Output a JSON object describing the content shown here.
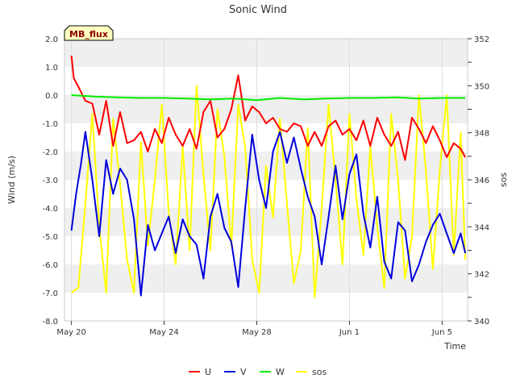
{
  "chart_data": {
    "type": "line",
    "title": "Sonic Wind",
    "badge": "MB_flux",
    "xlabel": "Time",
    "ylabel": "Wind (m/s)",
    "y2label": "sos",
    "ylim": [
      -8.0,
      2.0
    ],
    "y2lim": [
      340,
      352
    ],
    "xlim": [
      -0.3,
      17.1
    ],
    "yticks": [
      "2.0",
      "1.0",
      "0.0",
      "-1.0",
      "-2.0",
      "-3.0",
      "-4.0",
      "-5.0",
      "-6.0",
      "-7.0",
      "-8.0"
    ],
    "y2ticks": [
      "352",
      "350",
      "348",
      "346",
      "344",
      "342",
      "340"
    ],
    "xticks": [
      {
        "day": 0,
        "label": "May 20"
      },
      {
        "day": 4,
        "label": "May 24"
      },
      {
        "day": 8,
        "label": "May 28"
      },
      {
        "day": 12,
        "label": "Jun 1"
      },
      {
        "day": 16,
        "label": "Jun 5"
      }
    ],
    "grid": true,
    "legend_position": "bottom",
    "series": [
      {
        "name": "U",
        "axis": "left",
        "color": "#ff0000",
        "x": [
          0,
          0.1,
          0.3,
          0.6,
          0.9,
          1.2,
          1.5,
          1.8,
          2.1,
          2.4,
          2.7,
          3.0,
          3.3,
          3.6,
          3.9,
          4.2,
          4.5,
          4.8,
          5.1,
          5.4,
          5.7,
          6.0,
          6.3,
          6.6,
          6.9,
          7.2,
          7.5,
          7.8,
          8.1,
          8.4,
          8.7,
          9.0,
          9.3,
          9.6,
          9.9,
          10.2,
          10.5,
          10.8,
          11.1,
          11.4,
          11.7,
          12.0,
          12.3,
          12.6,
          12.9,
          13.2,
          13.5,
          13.8,
          14.1,
          14.4,
          14.7,
          15.0,
          15.3,
          15.6,
          15.9,
          16.2,
          16.5,
          16.8,
          17.0
        ],
        "values": [
          1.4,
          0.6,
          0.3,
          -0.2,
          -0.3,
          -1.4,
          -0.2,
          -1.8,
          -0.6,
          -1.7,
          -1.6,
          -1.3,
          -2.0,
          -1.2,
          -1.7,
          -0.8,
          -1.4,
          -1.8,
          -1.2,
          -1.9,
          -0.6,
          -0.2,
          -1.5,
          -1.2,
          -0.5,
          0.7,
          -0.9,
          -0.4,
          -0.6,
          -1.0,
          -0.8,
          -1.2,
          -1.3,
          -1.0,
          -1.1,
          -1.8,
          -1.3,
          -1.8,
          -1.1,
          -0.9,
          -1.4,
          -1.2,
          -1.6,
          -0.9,
          -1.8,
          -0.8,
          -1.4,
          -1.8,
          -1.3,
          -2.3,
          -0.8,
          -1.2,
          -1.7,
          -1.1,
          -1.6,
          -2.2,
          -1.7,
          -1.9,
          -2.2
        ]
      },
      {
        "name": "V",
        "axis": "left",
        "color": "#0000dd",
        "x": [
          0,
          0.2,
          0.4,
          0.6,
          0.9,
          1.2,
          1.5,
          1.8,
          2.1,
          2.4,
          2.7,
          3.0,
          3.3,
          3.6,
          3.9,
          4.2,
          4.5,
          4.8,
          5.1,
          5.4,
          5.7,
          6.0,
          6.3,
          6.6,
          6.9,
          7.2,
          7.5,
          7.8,
          8.1,
          8.4,
          8.7,
          9.0,
          9.3,
          9.6,
          9.9,
          10.2,
          10.5,
          10.8,
          11.1,
          11.4,
          11.7,
          12.0,
          12.3,
          12.6,
          12.9,
          13.2,
          13.5,
          13.8,
          14.1,
          14.4,
          14.7,
          15.0,
          15.3,
          15.6,
          15.9,
          16.2,
          16.5,
          16.8,
          17.0
        ],
        "values": [
          -4.8,
          -3.5,
          -2.5,
          -1.3,
          -3.0,
          -5.0,
          -2.3,
          -3.5,
          -2.6,
          -3.0,
          -4.4,
          -7.1,
          -4.6,
          -5.5,
          -4.9,
          -4.3,
          -5.6,
          -4.4,
          -5.0,
          -5.3,
          -6.5,
          -4.3,
          -3.5,
          -4.7,
          -5.2,
          -6.8,
          -4.0,
          -1.4,
          -3.0,
          -4.0,
          -2.0,
          -1.3,
          -2.4,
          -1.5,
          -2.6,
          -3.6,
          -4.3,
          -6.0,
          -4.3,
          -2.5,
          -4.4,
          -2.8,
          -2.1,
          -4.2,
          -5.4,
          -3.6,
          -5.9,
          -6.5,
          -4.5,
          -4.8,
          -6.6,
          -6.0,
          -5.2,
          -4.6,
          -4.2,
          -4.9,
          -5.6,
          -4.9,
          -5.6
        ]
      },
      {
        "name": "W",
        "axis": "left",
        "color": "#00ee00",
        "x": [
          0,
          1,
          2,
          3,
          4,
          5,
          6,
          7,
          8,
          9,
          10,
          11,
          12,
          13,
          14,
          15,
          16,
          17
        ],
        "values": [
          0.0,
          -0.05,
          -0.08,
          -0.1,
          -0.1,
          -0.12,
          -0.15,
          -0.12,
          -0.18,
          -0.1,
          -0.15,
          -0.12,
          -0.1,
          -0.1,
          -0.08,
          -0.12,
          -0.1,
          -0.1
        ]
      },
      {
        "name": "sos",
        "axis": "right",
        "color": "#ffff00",
        "x": [
          0,
          0.3,
          0.6,
          0.9,
          1.2,
          1.5,
          1.8,
          2.1,
          2.4,
          2.7,
          3.0,
          3.3,
          3.6,
          3.9,
          4.2,
          4.5,
          4.8,
          5.1,
          5.4,
          5.7,
          6.0,
          6.3,
          6.6,
          6.9,
          7.2,
          7.5,
          7.8,
          8.1,
          8.4,
          8.7,
          9.0,
          9.3,
          9.6,
          9.9,
          10.2,
          10.5,
          10.8,
          11.1,
          11.4,
          11.7,
          12.0,
          12.3,
          12.6,
          12.9,
          13.2,
          13.5,
          13.8,
          14.1,
          14.4,
          14.7,
          15.0,
          15.3,
          15.6,
          15.9,
          16.2,
          16.5,
          16.8,
          17.0
        ],
        "values": [
          341.2,
          341.4,
          345.0,
          348.8,
          344.0,
          341.2,
          348.6,
          345.8,
          342.6,
          341.2,
          347.6,
          343.2,
          346.0,
          349.2,
          344.6,
          342.4,
          347.4,
          343.0,
          350.0,
          346.2,
          343.0,
          349.0,
          347.0,
          343.2,
          349.2,
          347.4,
          342.6,
          341.2,
          346.6,
          344.4,
          348.6,
          345.0,
          341.6,
          343.0,
          348.2,
          341.0,
          344.8,
          349.2,
          346.0,
          342.4,
          348.8,
          345.2,
          342.8,
          347.4,
          344.0,
          341.4,
          348.8,
          346.0,
          341.8,
          343.6,
          349.6,
          346.4,
          342.2,
          346.4,
          349.6,
          342.8,
          348.0,
          342.6
        ]
      }
    ]
  }
}
